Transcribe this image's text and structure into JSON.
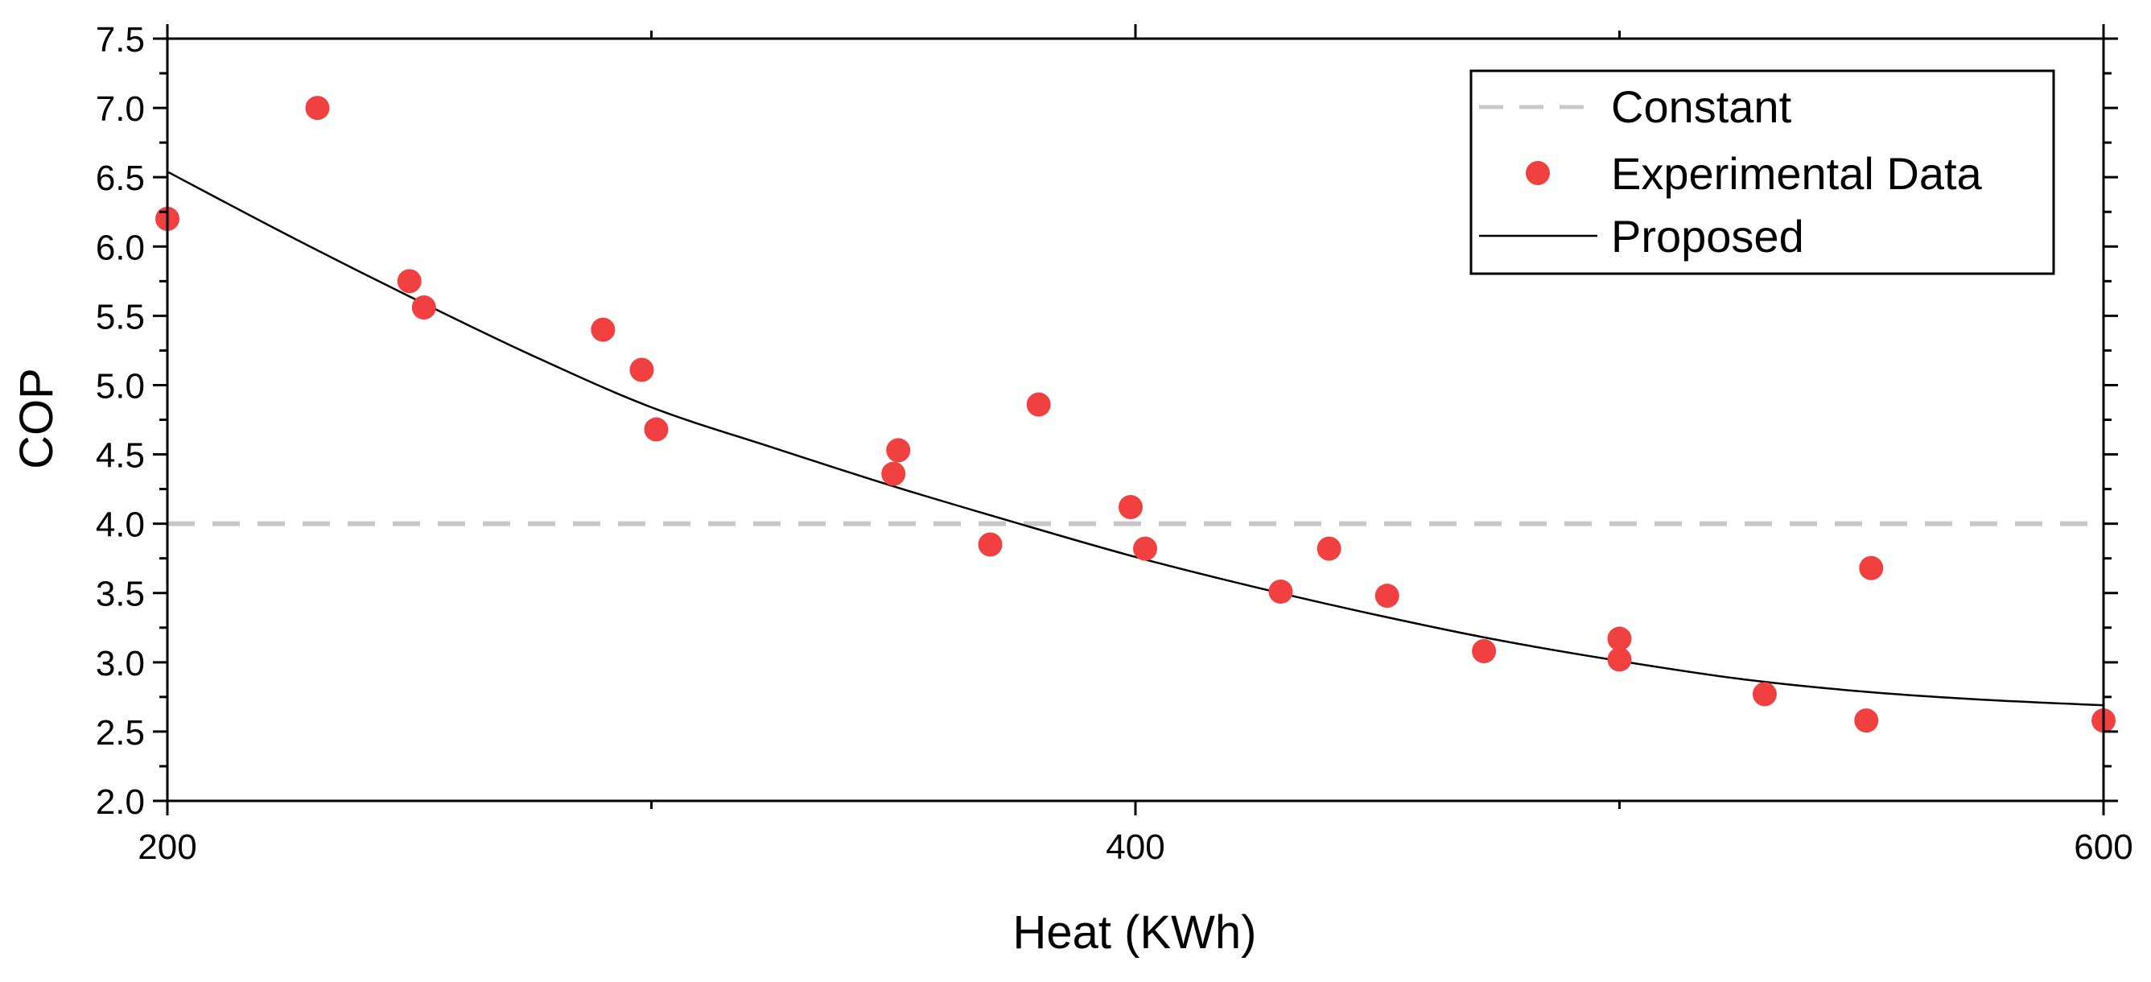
{
  "chart_data": {
    "type": "scatter",
    "title": "",
    "xlabel": "Heat (KWh)",
    "ylabel": "COP",
    "xlim": [
      200,
      600
    ],
    "ylim": [
      2.0,
      7.5
    ],
    "x_ticks": [
      200,
      400,
      600
    ],
    "x_tick_labels": [
      "200",
      "400",
      "600"
    ],
    "x_minor_ticks": [
      300,
      500
    ],
    "y_ticks": [
      2.0,
      2.5,
      3.0,
      3.5,
      4.0,
      4.5,
      5.0,
      5.5,
      6.0,
      6.5,
      7.0,
      7.5
    ],
    "y_tick_labels": [
      "2.0",
      "2.5",
      "3.0",
      "3.5",
      "4.0",
      "4.5",
      "5.0",
      "5.5",
      "6.0",
      "6.5",
      "7.0",
      "7.5"
    ],
    "grid": false,
    "legend_position": "top-right",
    "series": [
      {
        "name": "Constant",
        "kind": "dashed-line",
        "color": "#c8c8c8",
        "x": [
          200,
          600
        ],
        "y": [
          4.0,
          4.0
        ]
      },
      {
        "name": "Experimental Data",
        "kind": "scatter",
        "color": "#f04040",
        "x": [
          200,
          231,
          250,
          253,
          290,
          298,
          301,
          350,
          351,
          370,
          380,
          399,
          402,
          430,
          440,
          452,
          472,
          500,
          500,
          530,
          551,
          552,
          600
        ],
        "y": [
          6.2,
          7.0,
          5.75,
          5.56,
          5.4,
          5.11,
          4.68,
          4.36,
          4.53,
          3.85,
          4.86,
          4.12,
          3.82,
          3.51,
          3.82,
          3.48,
          3.08,
          3.17,
          3.02,
          2.77,
          2.58,
          3.68,
          2.58
        ]
      },
      {
        "name": "Proposed",
        "kind": "line",
        "color": "#000000",
        "x": [
          200,
          225,
          250,
          275,
          300,
          325,
          350,
          375,
          400,
          425,
          450,
          475,
          500,
          525,
          550,
          575,
          600
        ],
        "y": [
          6.54,
          6.08,
          5.64,
          5.22,
          4.84,
          4.55,
          4.27,
          4.01,
          3.76,
          3.54,
          3.34,
          3.16,
          3.01,
          2.88,
          2.79,
          2.73,
          2.69
        ]
      }
    ]
  }
}
